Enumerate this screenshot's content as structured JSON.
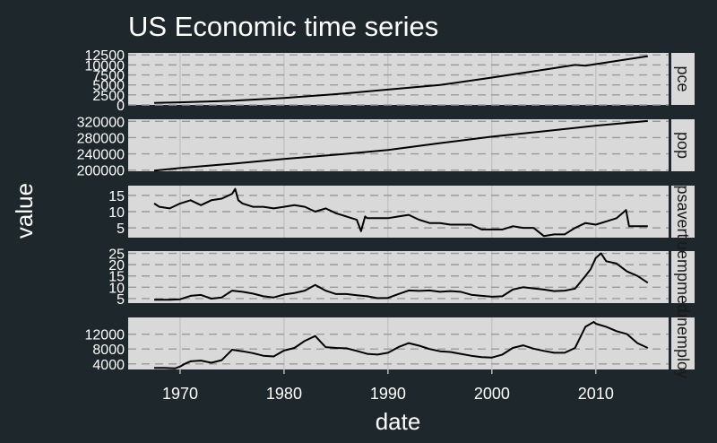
{
  "chart_data": {
    "type": "line",
    "title": "US Economic time series",
    "xlabel": "date",
    "ylabel": "value",
    "xlim": [
      1965,
      2017
    ],
    "x_ticks": [
      1970,
      1980,
      1990,
      2000,
      2010
    ],
    "grid": true,
    "line_color": "#000000",
    "colors": {
      "background": "#1e272c",
      "panel": "#d9d9d9",
      "strip": "#d9d9d9",
      "text": "#ffffff",
      "grid": "#9a9a9a"
    },
    "facets": [
      {
        "strip": "pce",
        "ylim": [
          0,
          13000
        ],
        "y_ticks": [
          0,
          2500,
          5000,
          7500,
          10000,
          12500
        ],
        "y_tick_labels": [
          "0",
          "2500",
          "5000",
          "7500",
          "10000",
          "12500"
        ],
        "points": [
          [
            1967.5,
            507
          ],
          [
            1970,
            640
          ],
          [
            1975,
            1030
          ],
          [
            1980,
            1750
          ],
          [
            1985,
            2700
          ],
          [
            1990,
            3840
          ],
          [
            1995,
            4980
          ],
          [
            2000,
            6830
          ],
          [
            2005,
            8800
          ],
          [
            2008,
            10000
          ],
          [
            2009,
            9800
          ],
          [
            2010,
            10200
          ],
          [
            2015,
            12200
          ]
        ]
      },
      {
        "strip": "pop",
        "ylim": [
          197000,
          325000
        ],
        "y_ticks": [
          200000,
          240000,
          280000,
          320000
        ],
        "y_tick_labels": [
          "200000",
          "240000",
          "280000",
          "320000"
        ],
        "points": [
          [
            1967.5,
            198700
          ],
          [
            1970,
            205000
          ],
          [
            1975,
            215500
          ],
          [
            1980,
            227200
          ],
          [
            1985,
            237900
          ],
          [
            1990,
            249600
          ],
          [
            1995,
            266300
          ],
          [
            2000,
            282200
          ],
          [
            2005,
            295500
          ],
          [
            2010,
            309300
          ],
          [
            2015,
            320900
          ]
        ]
      },
      {
        "strip": "psavert",
        "ylim": [
          2,
          18
        ],
        "y_ticks": [
          5,
          10,
          15
        ],
        "y_tick_labels": [
          "5",
          "10",
          "15"
        ],
        "points": [
          [
            1967.5,
            12.5
          ],
          [
            1968,
            11.5
          ],
          [
            1969,
            11.0
          ],
          [
            1970,
            12.5
          ],
          [
            1971,
            13.5
          ],
          [
            1972,
            12.0
          ],
          [
            1973,
            13.5
          ],
          [
            1974,
            14.0
          ],
          [
            1975,
            15.5
          ],
          [
            1975.3,
            17.0
          ],
          [
            1975.6,
            13.5
          ],
          [
            1976,
            12.5
          ],
          [
            1977,
            11.5
          ],
          [
            1978,
            11.5
          ],
          [
            1979,
            11.0
          ],
          [
            1980,
            11.5
          ],
          [
            1981,
            12.0
          ],
          [
            1982,
            11.5
          ],
          [
            1983,
            10.0
          ],
          [
            1984,
            11.0
          ],
          [
            1985,
            9.5
          ],
          [
            1986,
            8.5
          ],
          [
            1987,
            7.5
          ],
          [
            1987.4,
            4.0
          ],
          [
            1987.8,
            8.5
          ],
          [
            1988,
            8.0
          ],
          [
            1989,
            8.0
          ],
          [
            1990,
            8.0
          ],
          [
            1991,
            8.5
          ],
          [
            1992,
            9.0
          ],
          [
            1993,
            7.5
          ],
          [
            1994,
            6.5
          ],
          [
            1995,
            6.5
          ],
          [
            1996,
            6.0
          ],
          [
            1997,
            6.0
          ],
          [
            1998,
            6.0
          ],
          [
            1999,
            4.5
          ],
          [
            2000,
            4.5
          ],
          [
            2001,
            4.5
          ],
          [
            2002,
            5.5
          ],
          [
            2003,
            5.0
          ],
          [
            2004,
            5.0
          ],
          [
            2005,
            2.5
          ],
          [
            2006,
            3.0
          ],
          [
            2007,
            3.0
          ],
          [
            2008,
            5.0
          ],
          [
            2009,
            6.5
          ],
          [
            2010,
            6.0
          ],
          [
            2011,
            7.0
          ],
          [
            2012,
            8.0
          ],
          [
            2012.9,
            10.5
          ],
          [
            2013.2,
            5.5
          ],
          [
            2014,
            5.5
          ],
          [
            2015,
            5.5
          ]
        ]
      },
      {
        "strip": "uempmed",
        "ylim": [
          3,
          26
        ],
        "y_ticks": [
          5,
          10,
          15,
          20,
          25
        ],
        "y_tick_labels": [
          "5",
          "10",
          "15",
          "20",
          "25"
        ],
        "points": [
          [
            1967.5,
            4.5
          ],
          [
            1969,
            4.5
          ],
          [
            1970,
            4.7
          ],
          [
            1971,
            6.2
          ],
          [
            1972,
            6.6
          ],
          [
            1973,
            5.0
          ],
          [
            1974,
            5.5
          ],
          [
            1975,
            8.5
          ],
          [
            1976,
            8.0
          ],
          [
            1977,
            7.2
          ],
          [
            1978,
            6.0
          ],
          [
            1979,
            5.5
          ],
          [
            1980,
            6.8
          ],
          [
            1981,
            7.5
          ],
          [
            1982,
            8.5
          ],
          [
            1983,
            11.0
          ],
          [
            1984,
            8.5
          ],
          [
            1985,
            7.0
          ],
          [
            1986,
            7.0
          ],
          [
            1987,
            6.5
          ],
          [
            1988,
            6.0
          ],
          [
            1989,
            5.2
          ],
          [
            1990,
            5.3
          ],
          [
            1991,
            7.0
          ],
          [
            1992,
            8.6
          ],
          [
            1993,
            8.4
          ],
          [
            1994,
            8.6
          ],
          [
            1995,
            8.0
          ],
          [
            1996,
            8.3
          ],
          [
            1997,
            8.0
          ],
          [
            1998,
            6.7
          ],
          [
            1999,
            6.2
          ],
          [
            2000,
            5.8
          ],
          [
            2001,
            6.0
          ],
          [
            2002,
            9.0
          ],
          [
            2003,
            10.0
          ],
          [
            2004,
            9.5
          ],
          [
            2005,
            9.0
          ],
          [
            2006,
            8.3
          ],
          [
            2007,
            8.5
          ],
          [
            2008,
            9.4
          ],
          [
            2009,
            15.0
          ],
          [
            2009.5,
            18.0
          ],
          [
            2010,
            23.0
          ],
          [
            2010.5,
            25.0
          ],
          [
            2011,
            21.5
          ],
          [
            2012,
            20.5
          ],
          [
            2013,
            17.0
          ],
          [
            2014,
            15.0
          ],
          [
            2015,
            12.0
          ]
        ]
      },
      {
        "strip": "unemploy",
        "ylim": [
          2500,
          16500
        ],
        "y_ticks": [
          4000,
          8000,
          12000
        ],
        "y_tick_labels": [
          "4000",
          "8000",
          "12000"
        ],
        "points": [
          [
            1967.5,
            2944
          ],
          [
            1968.5,
            2900
          ],
          [
            1969.5,
            2800
          ],
          [
            1970,
            3300
          ],
          [
            1970.5,
            4100
          ],
          [
            1971,
            4700
          ],
          [
            1972,
            4900
          ],
          [
            1973,
            4300
          ],
          [
            1974,
            5000
          ],
          [
            1975,
            7800
          ],
          [
            1976,
            7400
          ],
          [
            1977,
            6900
          ],
          [
            1978,
            6200
          ],
          [
            1979,
            6000
          ],
          [
            1980,
            7600
          ],
          [
            1981,
            8300
          ],
          [
            1982,
            10200
          ],
          [
            1983,
            11500
          ],
          [
            1984,
            8500
          ],
          [
            1985,
            8300
          ],
          [
            1986,
            8200
          ],
          [
            1987,
            7500
          ],
          [
            1988,
            6700
          ],
          [
            1989,
            6500
          ],
          [
            1990,
            7000
          ],
          [
            1991,
            8500
          ],
          [
            1992,
            9600
          ],
          [
            1993,
            8900
          ],
          [
            1994,
            8000
          ],
          [
            1995,
            7400
          ],
          [
            1996,
            7200
          ],
          [
            1997,
            6700
          ],
          [
            1998,
            6200
          ],
          [
            1999,
            5800
          ],
          [
            2000,
            5700
          ],
          [
            2001,
            6500
          ],
          [
            2002,
            8300
          ],
          [
            2003,
            9000
          ],
          [
            2004,
            8100
          ],
          [
            2005,
            7500
          ],
          [
            2006,
            7000
          ],
          [
            2007,
            7000
          ],
          [
            2008,
            8300
          ],
          [
            2009,
            14000
          ],
          [
            2009.8,
            15300
          ],
          [
            2010,
            14800
          ],
          [
            2011,
            14000
          ],
          [
            2012,
            12800
          ],
          [
            2013,
            12000
          ],
          [
            2014,
            9600
          ],
          [
            2015,
            8300
          ]
        ]
      }
    ]
  }
}
